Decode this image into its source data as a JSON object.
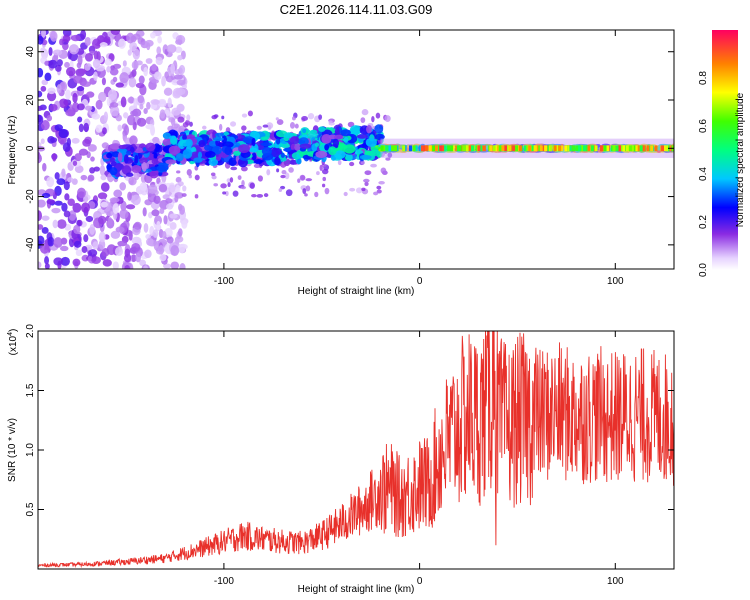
{
  "title": "C2E1.2026.114.11.03.G09",
  "chart_data": [
    {
      "type": "heatmap",
      "title": "C2E1.2026.114.11.03.G09",
      "xlabel": "Height of straight line (km)",
      "ylabel": "Frequency (Hz)",
      "xlim": [
        -195,
        130
      ],
      "ylim": [
        -50,
        49
      ],
      "xticks": [
        -100,
        0,
        100
      ],
      "yticks": [
        -40,
        -20,
        0,
        20,
        40
      ],
      "colorbar": {
        "label": "Normalized spectral amplitude",
        "range": [
          0,
          1
        ],
        "ticks": [
          0.0,
          0.2,
          0.4,
          0.6,
          0.8
        ]
      },
      "ridge_segments": [
        {
          "x_range": [
            -160,
            -130
          ],
          "freq_center": -5,
          "peak_amplitude": 0.35
        },
        {
          "x_range": [
            -130,
            -60
          ],
          "freq_center": 0,
          "peak_amplitude": 0.45
        },
        {
          "x_range": [
            -60,
            -20
          ],
          "freq_center": 2,
          "peak_amplitude": 0.5
        },
        {
          "x_range": [
            -20,
            130
          ],
          "freq_center": 0,
          "peak_amplitude": 0.95
        }
      ]
    },
    {
      "type": "line",
      "xlabel": "Height of straight line (km)",
      "ylabel": "SNR (10 * v/v)",
      "scale_label": "(x10",
      "scale_exp": "4",
      "scale_suffix": ")",
      "xlim": [
        -195,
        130
      ],
      "ylim": [
        0,
        20000
      ],
      "xticks": [
        -100,
        0,
        100
      ],
      "yticks": [
        5000,
        10000,
        15000,
        20000
      ],
      "ytick_labels": [
        "0.5",
        "1.0",
        "1.5",
        "2.0"
      ],
      "series": [
        {
          "name": "SNR",
          "color": "#e8302a",
          "x": [
            -195,
            -170,
            -150,
            -130,
            -110,
            -90,
            -80,
            -70,
            -60,
            -50,
            -40,
            -30,
            -20,
            -15,
            -10,
            -5,
            0,
            5,
            10,
            20,
            25,
            30,
            35,
            38,
            40,
            45,
            50,
            60,
            70,
            80,
            90,
            100,
            110,
            120,
            130
          ],
          "y": [
            300,
            400,
            600,
            900,
            1800,
            2800,
            2500,
            2300,
            2200,
            2800,
            3800,
            5000,
            6500,
            6800,
            6000,
            6500,
            7000,
            7200,
            9500,
            12000,
            13000,
            12500,
            14000,
            16000,
            12500,
            12000,
            12500,
            12800,
            13200,
            12800,
            13000,
            12700,
            13000,
            12800,
            12600
          ],
          "annotated_extremes": [
            {
              "x": 38,
              "y": 20000
            },
            {
              "x": 39,
              "y": 2000
            }
          ]
        }
      ]
    }
  ]
}
